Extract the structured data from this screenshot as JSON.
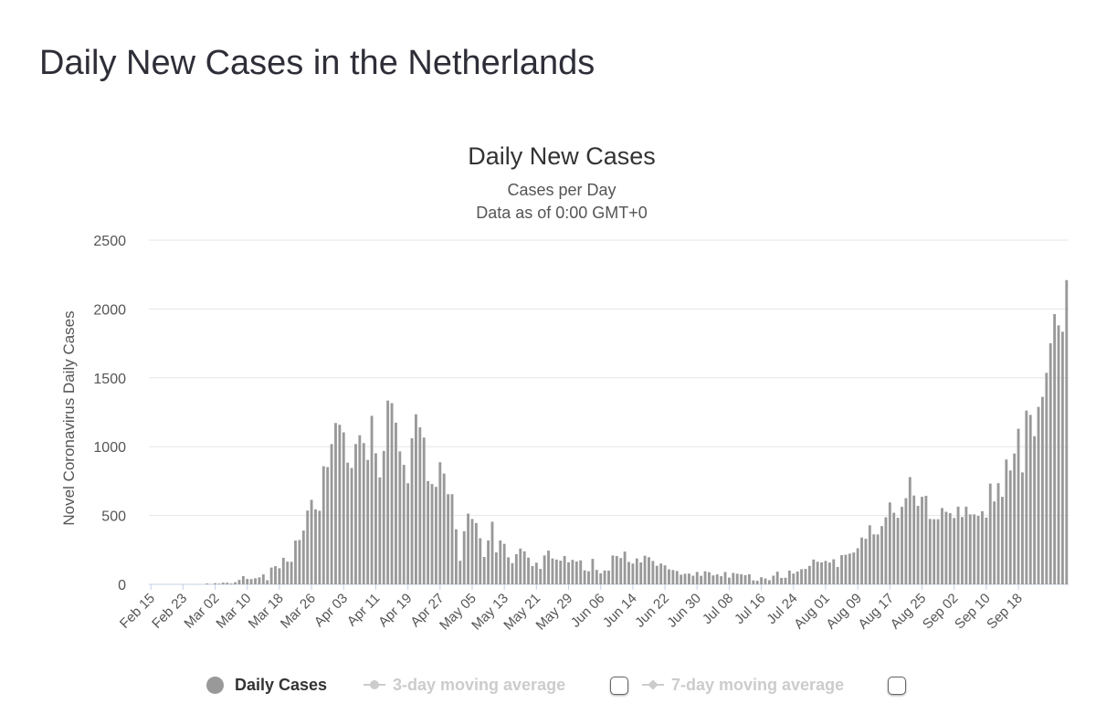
{
  "page": {
    "title": "Daily New Cases in the Netherlands"
  },
  "colors": {
    "bar": "#999999",
    "grid": "#e6e6e6",
    "baseline": "#c5d0e6",
    "text": "#555555"
  },
  "chart_data": {
    "type": "bar",
    "title": "Daily New Cases",
    "subtitle": "Cases per Day",
    "subtitle2": "Data as of 0:00 GMT+0",
    "xlabel": "",
    "ylabel": "Novel Coronavirus Daily Cases",
    "ylim": [
      0,
      2500
    ],
    "yticks": [
      0,
      500,
      1000,
      1500,
      2000,
      2500
    ],
    "grid": true,
    "legend_position": "bottom",
    "x_start": "Feb 15",
    "x_end": "Sep 20",
    "x_tick_labels": [
      "Feb 15",
      "Feb 23",
      "Mar 02",
      "Mar 10",
      "Mar 18",
      "Mar 26",
      "Apr 03",
      "Apr 11",
      "Apr 19",
      "Apr 27",
      "May 05",
      "May 13",
      "May 21",
      "May 29",
      "Jun 06",
      "Jun 14",
      "Jun 22",
      "Jun 30",
      "Jul 08",
      "Jul 16",
      "Jul 24",
      "Aug 01",
      "Aug 09",
      "Aug 17",
      "Aug 25",
      "Sep 02",
      "Sep 10",
      "Sep 18"
    ],
    "x_tick_interval_days": 8,
    "series": [
      {
        "name": "Daily Cases",
        "values": [
          0,
          0,
          0,
          0,
          0,
          0,
          0,
          0,
          0,
          0,
          0,
          0,
          0,
          0,
          0,
          0,
          0,
          0,
          0,
          0,
          0,
          0,
          0,
          0,
          0,
          0,
          0,
          0,
          0,
          0,
          0,
          0,
          0,
          0,
          0,
          0,
          0,
          0,
          0,
          0,
          0,
          0,
          0,
          0,
          0,
          0,
          0,
          0,
          0,
          0,
          0,
          0,
          0,
          0,
          0,
          0,
          0,
          0,
          0,
          0,
          0,
          0,
          0,
          0,
          0,
          0,
          0,
          0,
          0,
          0,
          0,
          0,
          0,
          0,
          0,
          0,
          0,
          0,
          0,
          0,
          0,
          0,
          0,
          0,
          0,
          0,
          0,
          0,
          0,
          0,
          0,
          0,
          0,
          0,
          0,
          0,
          0,
          0,
          0,
          0,
          0,
          0,
          0,
          0,
          0,
          0,
          0,
          0,
          0,
          0,
          0,
          0,
          0,
          0,
          0,
          0,
          0,
          0,
          0,
          0,
          0,
          0,
          0,
          0,
          0,
          0,
          0,
          0,
          0,
          0,
          0,
          0,
          0,
          0,
          0,
          0,
          0,
          0,
          0,
          0,
          0,
          0,
          0,
          0,
          0,
          0,
          0,
          0,
          0,
          0,
          0,
          0,
          0,
          0,
          0,
          0,
          0,
          0,
          0,
          0,
          0,
          0,
          0,
          0,
          0,
          0,
          0,
          0,
          0,
          0,
          0,
          0,
          0,
          0,
          0,
          0,
          0,
          0,
          0,
          0,
          0,
          0,
          0,
          0,
          0,
          0,
          0,
          0,
          0,
          0,
          0,
          0,
          0,
          0,
          0,
          0,
          0,
          0,
          0,
          0,
          0,
          0,
          0,
          0,
          0,
          0,
          0,
          0,
          0,
          0,
          0,
          0,
          0,
          0,
          0,
          0,
          0,
          0,
          0,
          0,
          0,
          0,
          0,
          0,
          0,
          0,
          0,
          0,
          0
        ],
        "values_src": [
          0,
          0,
          0,
          0,
          0,
          0,
          0,
          0,
          0,
          0,
          0,
          0,
          1,
          0,
          6,
          1,
          8,
          5,
          12,
          12,
          6,
          15,
          32,
          60,
          39,
          38,
          44,
          51,
          72,
          30,
          122,
          132,
          117,
          193,
          165,
          164,
          318,
          322,
          391,
          536,
          614,
          545,
          534,
          858,
          852,
          1019,
          1172,
          1159,
          1104,
          884,
          845,
          1019,
          1083,
          1026,
          904,
          1224,
          952,
          777,
          969,
          1335,
          1316,
          1174,
          966,
          868,
          734,
          1061,
          1235,
          1140,
          1066,
          750,
          729,
          708,
          887,
          805,
          655,
          655,
          400,
          171,
          386,
          514,
          475,
          445,
          335,
          199,
          319,
          455,
          232,
          319,
          294,
          196,
          154,
          219,
          260,
          240,
          194,
          133,
          157,
          112,
          210,
          245,
          188,
          180,
          172,
          206,
          160,
          178,
          166,
          174,
          102,
          95,
          185,
          105,
          80,
          101,
          100,
          210,
          206,
          191,
          238,
          163,
          151,
          188,
          159,
          208,
          197,
          170,
          135,
          151,
          138,
          109,
          104,
          97,
          70,
          77,
          78,
          63,
          90,
          62,
          95,
          88,
          65,
          72,
          59,
          90,
          49,
          83,
          77,
          73,
          67,
          73,
          29,
          26,
          52,
          43,
          30,
          63,
          92,
          47,
          48,
          100,
          78,
          93,
          110,
          112,
          134,
          180,
          164,
          160,
          170,
          158,
          182,
          126,
          212,
          215,
          223,
          231,
          262,
          340,
          331,
          429,
          363,
          362,
          423,
          487,
          595,
          520,
          483,
          563,
          626,
          779,
          645,
          570,
          636,
          643,
          475,
          473,
          473,
          554,
          527,
          517,
          482,
          564,
          489,
          564,
          508,
          508,
          497,
          531,
          485,
          732,
          602,
          735,
          636,
          907,
          827,
          950,
          1130,
          813,
          1262,
          1231,
          1076,
          1289,
          1362,
          1536,
          1751,
          1963,
          1881,
          1835,
          2210
        ]
      },
      {
        "name": "3-day moving average",
        "enabled": false
      },
      {
        "name": "7-day moving average",
        "enabled": false
      }
    ]
  },
  "legend": {
    "daily": "Daily Cases",
    "ma3": "3-day moving average",
    "ma7": "7-day moving average"
  }
}
